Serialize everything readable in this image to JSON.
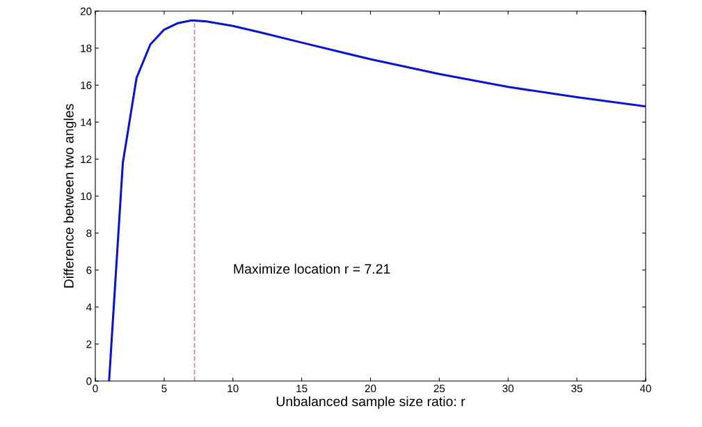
{
  "chart_data": {
    "type": "line",
    "xlabel": "Unbalanced sample size ratio: r",
    "ylabel": "Difference between two angles",
    "series": [
      {
        "color": "#0a14c8",
        "x": [
          1,
          2,
          3,
          4,
          5,
          6,
          7,
          8,
          10,
          12,
          15,
          20,
          25,
          30,
          35,
          40
        ],
        "values": [
          0,
          11.8,
          16.4,
          18.2,
          19.0,
          19.35,
          19.5,
          19.45,
          19.2,
          18.85,
          18.3,
          17.4,
          16.6,
          15.9,
          15.35,
          14.85
        ]
      }
    ],
    "xlim": [
      0,
      40
    ],
    "xticks": [
      0,
      5,
      10,
      15,
      20,
      25,
      30,
      35,
      40
    ],
    "ylim": [
      0,
      20
    ],
    "yticks": [
      0,
      2,
      4,
      6,
      8,
      10,
      12,
      14,
      16,
      18,
      20
    ],
    "ref_lines": [
      {
        "axis": "x",
        "value": 7.21,
        "color": "#d08c94",
        "line_style": "dashed"
      }
    ],
    "annotations": [
      {
        "text": "Maximize location r = 7.21",
        "x": 7.21,
        "y": 6
      }
    ],
    "grid": false,
    "legend": false,
    "marker": "none",
    "line_style": "solid"
  }
}
